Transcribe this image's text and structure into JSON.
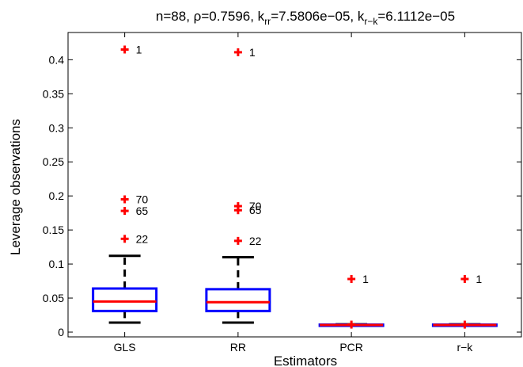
{
  "chart_data": {
    "type": "boxplot",
    "title_parts": {
      "prefix": "n=88, ρ=0.7596, k",
      "sub1": "rr",
      "mid": "=7.5806e−05, k",
      "sub2": "r−k",
      "suffix": "=6.1112e−05"
    },
    "xlabel": "Estimators",
    "ylabel": "Leverage observations",
    "ylim": [
      -0.007,
      0.44
    ],
    "yticks": [
      0,
      0.05,
      0.1,
      0.15,
      0.2,
      0.25,
      0.3,
      0.35,
      0.4
    ],
    "ytick_labels": [
      "0",
      "0.05",
      "0.1",
      "0.15",
      "0.2",
      "0.25",
      "0.3",
      "0.35",
      "0.4"
    ],
    "categories": [
      "GLS",
      "RR",
      "PCR",
      "r−k"
    ],
    "boxes": [
      {
        "name": "GLS",
        "whisker_low": 0.014,
        "q1": 0.031,
        "median": 0.045,
        "q3": 0.064,
        "whisker_high": 0.112,
        "outliers": [
          {
            "value": 0.415,
            "label": "1"
          },
          {
            "value": 0.195,
            "label": "70"
          },
          {
            "value": 0.178,
            "label": "65"
          },
          {
            "value": 0.137,
            "label": "22"
          }
        ]
      },
      {
        "name": "RR",
        "whisker_low": 0.014,
        "q1": 0.031,
        "median": 0.044,
        "q3": 0.063,
        "whisker_high": 0.11,
        "outliers": [
          {
            "value": 0.411,
            "label": "1"
          },
          {
            "value": 0.185,
            "label": "70"
          },
          {
            "value": 0.179,
            "label": "65"
          },
          {
            "value": 0.134,
            "label": "22"
          }
        ]
      },
      {
        "name": "PCR",
        "whisker_low": 0.0095,
        "q1": 0.01,
        "median": 0.0105,
        "q3": 0.011,
        "whisker_high": 0.0115,
        "outliers": [
          {
            "value": 0.078,
            "label": "1"
          },
          {
            "value": 0.011,
            "label": ""
          }
        ]
      },
      {
        "name": "r−k",
        "whisker_low": 0.0095,
        "q1": 0.01,
        "median": 0.0105,
        "q3": 0.011,
        "whisker_high": 0.0115,
        "outliers": [
          {
            "value": 0.078,
            "label": "1"
          },
          {
            "value": 0.011,
            "label": ""
          }
        ]
      }
    ],
    "colors": {
      "box": "#0000ff",
      "median": "#ff0000",
      "whisker": "#000000",
      "outlier": "#ff0000"
    }
  }
}
